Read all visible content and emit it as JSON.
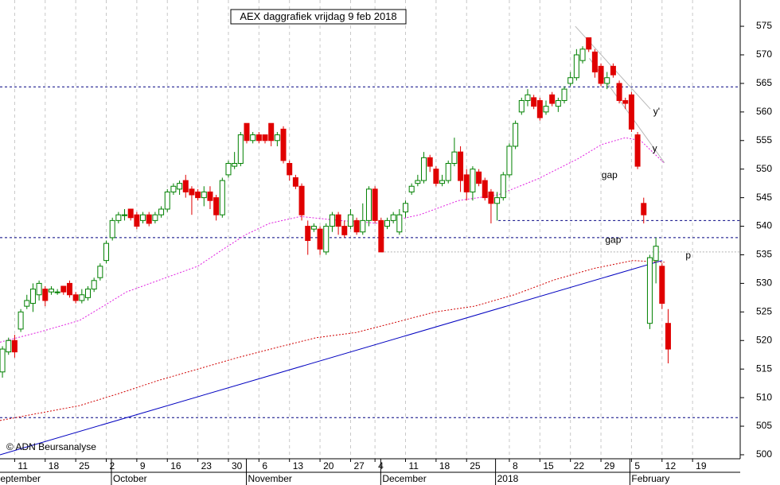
{
  "chart_data": {
    "type": "candlestick",
    "title": "AEX daggrafiek vrijdag 9 feb 2018",
    "copyright": "© ADN Beursanalyse",
    "xlim": [
      -3.4,
      117.8
    ],
    "ylim": [
      499.3,
      579.6
    ],
    "yticks": [
      500,
      505,
      510,
      515,
      520,
      525,
      530,
      535,
      540,
      545,
      550,
      555,
      560,
      565,
      570,
      575
    ],
    "xticks": [
      {
        "value": -1,
        "label": "11"
      },
      {
        "value": 4,
        "label": "18"
      },
      {
        "value": 9,
        "label": "25"
      },
      {
        "value": 14,
        "label": "2"
      },
      {
        "value": 19,
        "label": "9"
      },
      {
        "value": 24,
        "label": "16"
      },
      {
        "value": 29,
        "label": "23"
      },
      {
        "value": 34,
        "label": "30"
      },
      {
        "value": 39,
        "label": "6"
      },
      {
        "value": 44,
        "label": "13"
      },
      {
        "value": 49,
        "label": "20"
      },
      {
        "value": 54,
        "label": "27"
      },
      {
        "value": 58,
        "label": "4"
      },
      {
        "value": 63,
        "label": "11"
      },
      {
        "value": 68,
        "label": "18"
      },
      {
        "value": 73,
        "label": "25"
      },
      {
        "value": 80,
        "label": "8"
      },
      {
        "value": 85,
        "label": "15"
      },
      {
        "value": 90,
        "label": "22"
      },
      {
        "value": 95,
        "label": "29"
      },
      {
        "value": 100,
        "label": "5"
      },
      {
        "value": 105,
        "label": "12"
      },
      {
        "value": 110,
        "label": "19"
      }
    ],
    "months": [
      {
        "x": -4.4,
        "label": "September"
      },
      {
        "x": 15.1,
        "label": "October"
      },
      {
        "x": 37.2,
        "label": "November"
      },
      {
        "x": 59.2,
        "label": "December"
      },
      {
        "x": 78,
        "label": "2018"
      },
      {
        "x": 100,
        "label": "February"
      }
    ],
    "up_color": "#008000",
    "down_color": "#e00000",
    "candles": {
      "x": [
        -3,
        -2,
        -1,
        0,
        1,
        2,
        3,
        4,
        5,
        6,
        7,
        8,
        9,
        10,
        11,
        12,
        13,
        14,
        15,
        16,
        17,
        18,
        19,
        20,
        21,
        22,
        23,
        24,
        25,
        26,
        27,
        28,
        29,
        30,
        31,
        32,
        33,
        34,
        35,
        36,
        37,
        38,
        39,
        40,
        41,
        42,
        43,
        44,
        45,
        46,
        47,
        48,
        49,
        50,
        51,
        52,
        53,
        54,
        55,
        56,
        57,
        58,
        59,
        60,
        61,
        62,
        63,
        64,
        65,
        66,
        67,
        68,
        69,
        70,
        71,
        72,
        73,
        74,
        75,
        76,
        77,
        78,
        79,
        80,
        81,
        82,
        83,
        84,
        85,
        86,
        87,
        88,
        89,
        90,
        91,
        92,
        93,
        94,
        95,
        96,
        97,
        98,
        99,
        100,
        101,
        102,
        103,
        104,
        105,
        106
      ],
      "open": [
        514.5,
        518,
        520,
        522,
        526,
        526.5,
        528,
        529,
        528.5,
        528.5,
        529.5,
        530,
        528,
        527,
        527.5,
        529,
        531,
        534,
        538,
        541,
        542,
        543,
        542,
        541,
        542,
        541,
        542,
        543,
        546,
        546.5,
        548,
        546.5,
        546,
        545,
        546,
        545,
        542,
        549,
        550.5,
        551,
        558,
        555,
        556,
        556,
        558,
        555,
        557,
        551,
        548.5,
        547,
        540,
        539.5,
        539.5,
        535.5,
        540,
        542,
        540,
        540,
        541,
        539,
        541,
        546.5,
        541,
        540,
        541,
        539,
        542.5,
        546,
        547.5,
        548,
        552,
        550,
        547.5,
        548,
        551,
        553,
        549,
        546,
        549.5,
        548,
        546,
        544,
        545,
        549,
        554,
        560,
        562,
        562.5,
        562,
        560,
        563,
        561,
        562,
        565,
        566,
        569,
        573,
        570.5,
        568,
        565,
        568,
        565,
        562,
        563,
        556,
        544,
        523,
        534,
        533,
        523
      ],
      "high": [
        519,
        520.5,
        521,
        525.5,
        528,
        530,
        530.5,
        529.5,
        529.5,
        529,
        529.5,
        530.5,
        528.5,
        529,
        529.5,
        531,
        533.5,
        537.5,
        541.5,
        542.5,
        543,
        543,
        542.5,
        542.5,
        542.5,
        542.5,
        543.5,
        546.5,
        547.5,
        548,
        549,
        547,
        546.5,
        547,
        547,
        545.5,
        548.5,
        551.5,
        553,
        556.5,
        558,
        556.5,
        556.5,
        556,
        558,
        556.5,
        557.5,
        551.5,
        549,
        547.5,
        541,
        540.5,
        540,
        540.5,
        542.5,
        542.5,
        541,
        543,
        541.5,
        544,
        547,
        547,
        541.5,
        541.5,
        542.5,
        543,
        544.5,
        547.5,
        549,
        553,
        552.5,
        550.5,
        549,
        551.5,
        555.5,
        554,
        550,
        550.5,
        550,
        548.5,
        546.5,
        546,
        549.5,
        554.5,
        558.5,
        562.5,
        564,
        563,
        562.5,
        562,
        563.5,
        562.5,
        564.5,
        567,
        571,
        571.5,
        573,
        571,
        568.5,
        567,
        568.5,
        565.5,
        562.5,
        563.5,
        556.5,
        545,
        535,
        538,
        533.5,
        525.5
      ],
      "low": [
        513.5,
        517.5,
        517,
        521.5,
        525.5,
        525,
        527,
        526,
        528,
        528,
        528,
        527.5,
        526.5,
        526.5,
        527,
        528.5,
        530.5,
        533.5,
        537.5,
        540.5,
        541,
        541,
        539.5,
        540.5,
        540,
        540.5,
        541.5,
        542.5,
        545.5,
        545.5,
        545,
        542,
        544.5,
        543.5,
        543,
        541,
        541.5,
        548.5,
        550,
        550.5,
        554.5,
        554.5,
        554.5,
        554.5,
        554,
        554,
        551,
        548,
        546.5,
        541,
        535,
        539,
        535,
        535,
        539,
        538.5,
        538,
        539.5,
        538.5,
        538.5,
        540,
        540.5,
        535.5,
        539.5,
        540.5,
        538.5,
        541.5,
        545.5,
        547,
        547.5,
        549.5,
        547,
        547,
        547.5,
        550.5,
        546,
        544.5,
        544.5,
        547,
        544.5,
        540.5,
        541,
        544.5,
        548.5,
        553.5,
        559.5,
        561,
        560.5,
        558.5,
        559.5,
        561,
        560,
        561.5,
        564.5,
        565.5,
        568.5,
        570.5,
        566,
        564.5,
        564,
        566,
        561.5,
        560.5,
        556.5,
        550,
        540.5,
        522,
        530,
        525.5,
        516
      ],
      "close": [
        518.5,
        520,
        518,
        525,
        527,
        529,
        530,
        527,
        529,
        528.5,
        528.5,
        528,
        527,
        528,
        529,
        530.5,
        533,
        537,
        541,
        542,
        542,
        541.5,
        540,
        542,
        540.5,
        542,
        543,
        546,
        547,
        547.5,
        546,
        545.5,
        545,
        546,
        544.5,
        542,
        548,
        551,
        551,
        556,
        555,
        556,
        555,
        555,
        555,
        556,
        551.5,
        549,
        547,
        542,
        537.5,
        540,
        536,
        540,
        542,
        540,
        538.5,
        542,
        539,
        541,
        546.5,
        541,
        535.5,
        541,
        542,
        542,
        544,
        547,
        548,
        552,
        550.5,
        547.5,
        548,
        551,
        553,
        548,
        546,
        550,
        547.5,
        545,
        544,
        545,
        549,
        554,
        558,
        562,
        563,
        561,
        559,
        561,
        561.5,
        562,
        564,
        566,
        570,
        571,
        571,
        567,
        565,
        566,
        566.5,
        562,
        561.5,
        557,
        550.5,
        542,
        534.5,
        536.5,
        526.5,
        518.5
      ]
    },
    "lines": [
      {
        "color": "#e020e0",
        "style": "dotted",
        "x": [
          -3.4,
          3.1,
          9.6,
          13.5,
          17.3,
          22.5,
          29,
          32.9,
          36.8,
          40.7,
          45.8,
          52.3,
          58.8,
          65.3,
          71.7,
          78.2,
          84.7,
          91.2,
          95.1,
          99,
          101.5,
          105.4
        ],
        "values": [
          519.7,
          521.5,
          523.5,
          526,
          528.5,
          530.5,
          533,
          535.8,
          538.5,
          540.5,
          541.7,
          541,
          540.5,
          542,
          544.5,
          545.5,
          548.3,
          551.8,
          554.3,
          555.5,
          555,
          551
        ]
      },
      {
        "color": "#d00000",
        "style": "dotted",
        "x": [
          -3.4,
          9.6,
          16,
          22.5,
          35.5,
          42,
          48.4,
          54.9,
          61.4,
          67.9,
          74.3,
          80.8,
          87.3,
          93.8,
          100.2,
          105.4
        ],
        "values": [
          506,
          508.6,
          510.7,
          513,
          517,
          518.8,
          520.5,
          521.4,
          523.2,
          525,
          526,
          528,
          530.6,
          532.6,
          534,
          533.7
        ]
      },
      {
        "color": "#0000c0",
        "style": "solid",
        "x": [
          -3.4,
          105
        ],
        "values": [
          500,
          534
        ]
      },
      {
        "color": "#b8b8b8",
        "style": "solid",
        "x": [
          90.8,
          103.1
        ],
        "values": [
          575,
          560.5
        ]
      },
      {
        "color": "#b8b8b8",
        "style": "solid",
        "x": [
          93.1,
          105.4
        ],
        "values": [
          569.4,
          551.1
        ]
      }
    ],
    "levels": [
      {
        "value": 564.4,
        "from": -3.4,
        "color": "#000080",
        "style": "dashed"
      },
      {
        "value": 538,
        "from": -3.4,
        "color": "#000080",
        "style": "dashed"
      },
      {
        "value": 506.5,
        "from": -3.4,
        "color": "#000080",
        "style": "dashed"
      },
      {
        "value": 541,
        "from": 78.2,
        "color": "#000080",
        "style": "dashed"
      },
      {
        "value": 535.5,
        "from": 59,
        "color": "#b0b0b0",
        "style": "dotted"
      }
    ],
    "annotations": [
      {
        "text": "gap",
        "x": 96.4,
        "y": 548.9,
        "color": "#000000"
      },
      {
        "text": "gap",
        "x": 97,
        "y": 537.5,
        "color": "#000000"
      },
      {
        "text": "y'",
        "x": 104.1,
        "y": 560,
        "color": "#a0a0a0"
      },
      {
        "text": "y",
        "x": 103.8,
        "y": 553.5,
        "color": "#a0a0a0"
      },
      {
        "text": "p",
        "x": 109.3,
        "y": 534.8,
        "color": "#0000c0"
      }
    ]
  }
}
